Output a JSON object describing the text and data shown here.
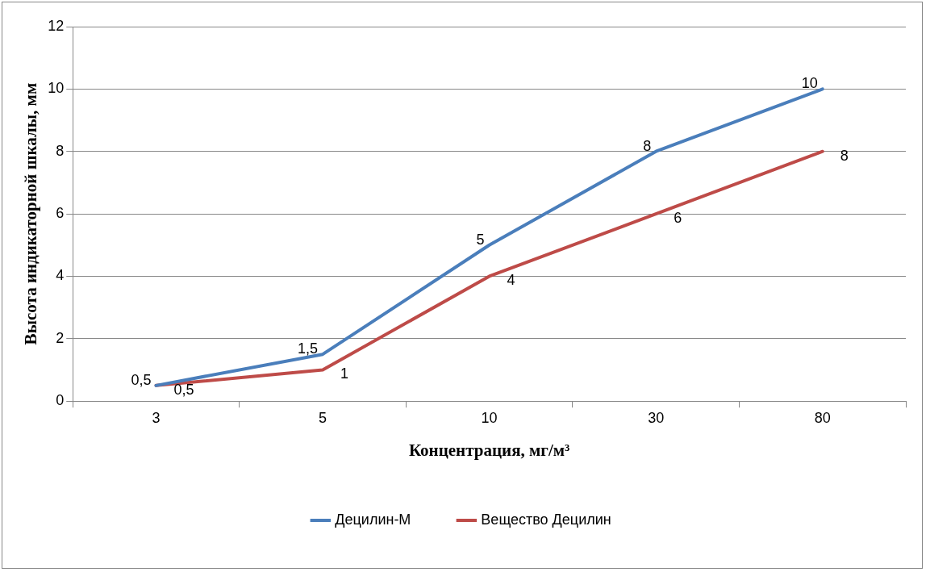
{
  "chart_data": {
    "type": "line",
    "xlabel": "Концентрация, мг/м³",
    "ylabel": "Высота индикаторной шкалы, мм",
    "categories": [
      "3",
      "5",
      "10",
      "30",
      "80"
    ],
    "series": [
      {
        "name": "Децилин-М",
        "color": "#4a7ebb",
        "values": [
          0.5,
          1.5,
          5,
          8,
          10
        ],
        "value_labels": [
          "0,5",
          "1,5",
          "5",
          "8",
          "10"
        ]
      },
      {
        "name": "Вещество Децилин",
        "color": "#be4b48",
        "values": [
          0.5,
          1,
          4,
          6,
          8
        ],
        "value_labels": [
          "0,5",
          "1",
          "4",
          "6",
          "8"
        ]
      }
    ],
    "ylim": [
      0,
      12
    ],
    "yticks": [
      0,
      2,
      4,
      6,
      8,
      10,
      12
    ],
    "grid": "y",
    "legend": "bottom",
    "marker": "none",
    "line_style": "solid"
  }
}
